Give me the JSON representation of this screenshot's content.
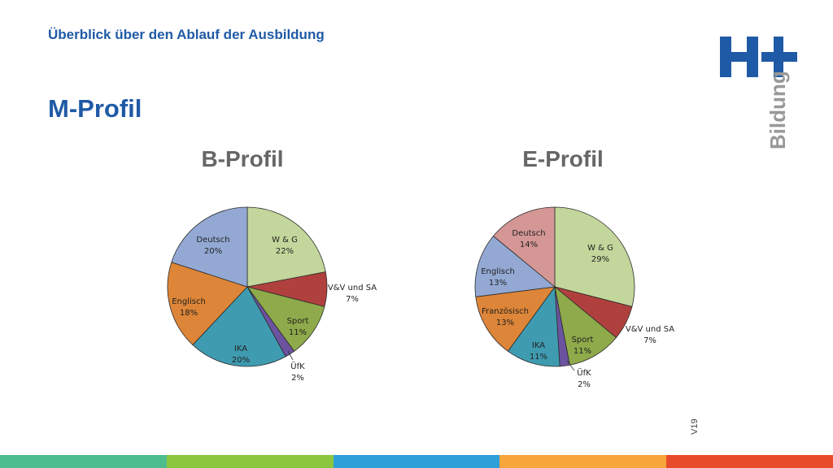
{
  "header": {
    "subtitle": "Überblick über den Ablauf der Ausbildung",
    "title": "M-Profil"
  },
  "logo": {
    "mark": "H+",
    "word": "Bildung",
    "color": "#1f5aa6"
  },
  "footer": {
    "version": "V19",
    "bar_colors": [
      "#4dbd8e",
      "#8cc63f",
      "#2d9fd9",
      "#f7a63b",
      "#e84c2b"
    ]
  },
  "chart_data": [
    {
      "type": "pie",
      "title": "B-Profil",
      "slices": [
        {
          "label": "W & G",
          "value": 22,
          "pct": "22%",
          "color": "#c3d69b"
        },
        {
          "label": "V&V und SA",
          "value": 7,
          "pct": "7%",
          "color": "#b0403e"
        },
        {
          "label": "Sport",
          "value": 11,
          "pct": "11%",
          "color": "#8eaa4a"
        },
        {
          "label": "ÜfK",
          "value": 2,
          "pct": "2%",
          "color": "#6c53a0"
        },
        {
          "label": "IKA",
          "value": 20,
          "pct": "20%",
          "color": "#3f9bb0"
        },
        {
          "label": "Englisch",
          "value": 18,
          "pct": "18%",
          "color": "#dd8538"
        },
        {
          "label": "Deutsch",
          "value": 20,
          "pct": "20%",
          "color": "#93a9d4"
        }
      ]
    },
    {
      "type": "pie",
      "title": "E-Profil",
      "slices": [
        {
          "label": "W & G",
          "value": 29,
          "pct": "29%",
          "color": "#c3d69b"
        },
        {
          "label": "V&V und SA",
          "value": 7,
          "pct": "7%",
          "color": "#b0403e"
        },
        {
          "label": "Sport",
          "value": 11,
          "pct": "11%",
          "color": "#8eaa4a"
        },
        {
          "label": "ÜfK",
          "value": 2,
          "pct": "2%",
          "color": "#6c53a0"
        },
        {
          "label": "IKA",
          "value": 11,
          "pct": "11%",
          "color": "#3f9bb0"
        },
        {
          "label": "Französisch",
          "value": 13,
          "pct": "13%",
          "color": "#dd8538"
        },
        {
          "label": "Englisch",
          "value": 13,
          "pct": "13%",
          "color": "#93a9d4"
        },
        {
          "label": "Deutsch",
          "value": 14,
          "pct": "14%",
          "color": "#d49795"
        }
      ]
    }
  ]
}
